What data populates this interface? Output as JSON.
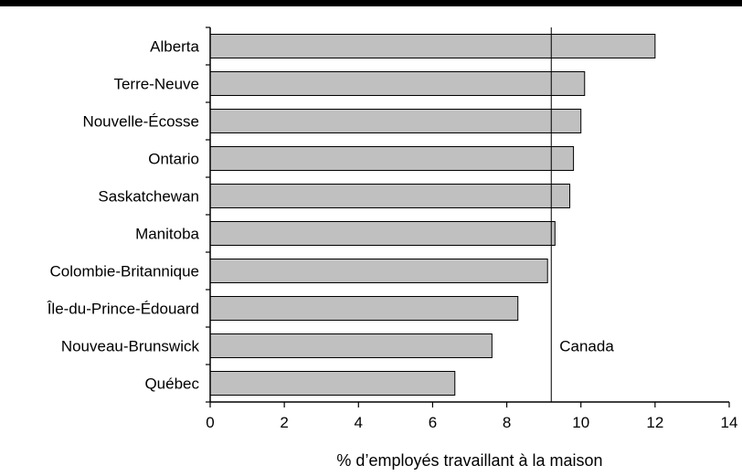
{
  "chart_data": {
    "type": "bar",
    "orientation": "horizontal",
    "categories": [
      "Alberta",
      "Terre-Neuve",
      "Nouvelle-Écosse",
      "Ontario",
      "Saskatchewan",
      "Manitoba",
      "Colombie-Britannique",
      "Île-du-Prince-Édouard",
      "Nouveau-Brunswick",
      "Québec"
    ],
    "values": [
      12.0,
      10.1,
      10.0,
      9.8,
      9.7,
      9.3,
      9.1,
      8.3,
      7.6,
      6.6
    ],
    "xlabel": "% d’employés travaillant à la maison",
    "ylabel": "",
    "xlim": [
      0,
      14
    ],
    "xticks": [
      "0",
      "2",
      "4",
      "6",
      "8",
      "10",
      "12",
      "14"
    ],
    "reference_line": {
      "label": "Canada",
      "value": 9.2
    },
    "grid": false,
    "legend": "none",
    "colors": {
      "bar_fill": "#c0c0c0",
      "bar_stroke": "#000000",
      "top_rule": "#000000"
    }
  }
}
